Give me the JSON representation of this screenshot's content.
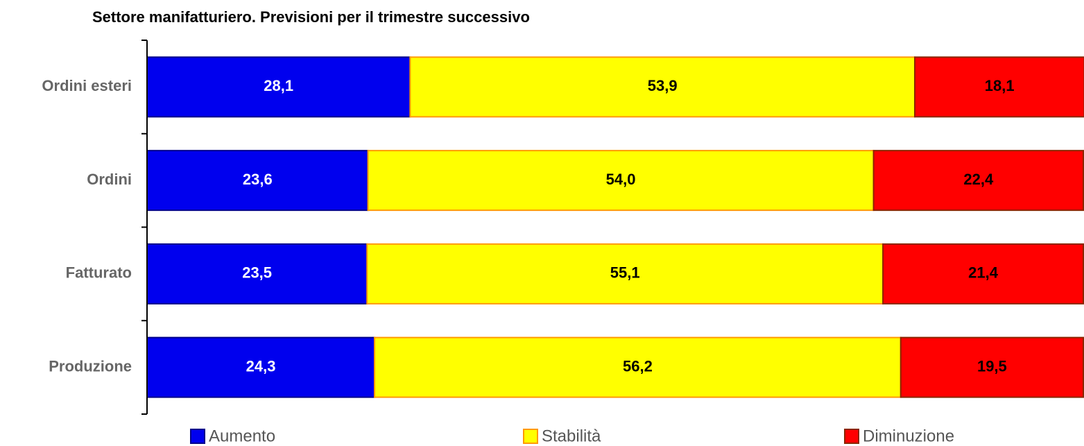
{
  "chart_data": {
    "type": "stacked-bar-horizontal",
    "title": "Settore manifatturiero. Previsioni per il trimestre successivo",
    "categories": [
      "Ordini esteri",
      "Ordini",
      "Fatturato",
      "Produzione"
    ],
    "series": [
      {
        "name": "Aumento",
        "color": "#0000ee",
        "values": [
          28.1,
          23.6,
          23.5,
          24.3
        ],
        "value_labels": [
          "28,1",
          "23,6",
          "23,5",
          "24,3"
        ]
      },
      {
        "name": "Stabilità",
        "color": "#ffff00",
        "values": [
          53.9,
          54.0,
          55.1,
          56.2
        ],
        "value_labels": [
          "53,9",
          "54,0",
          "55,1",
          "56,2"
        ]
      },
      {
        "name": "Diminuzione",
        "color": "#ff0000",
        "values": [
          18.1,
          22.4,
          21.4,
          19.5
        ],
        "value_labels": [
          "18,1",
          "22,4",
          "21,4",
          "19,5"
        ]
      }
    ],
    "xlim": [
      0,
      100
    ]
  }
}
